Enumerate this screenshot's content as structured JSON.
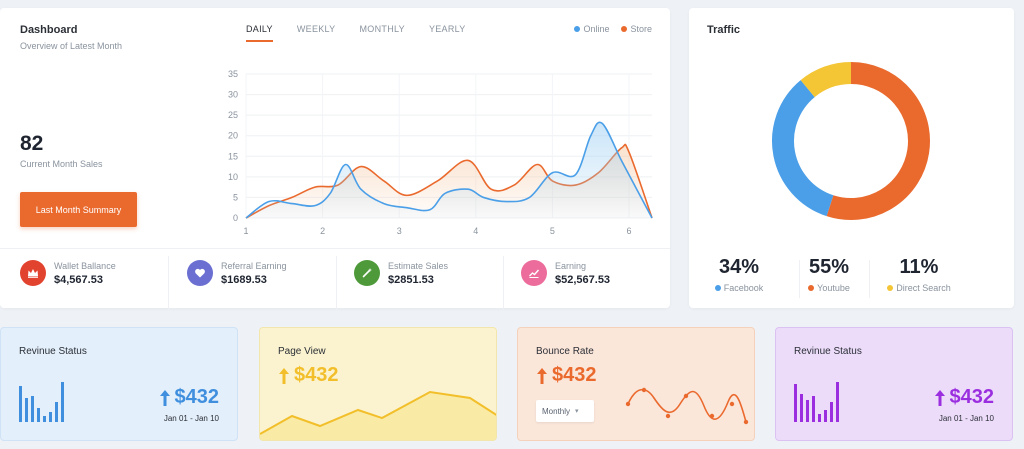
{
  "dashboard": {
    "title": "Dashboard",
    "subtitle": "Overview of Latest Month",
    "current_sales_value": "82",
    "current_sales_label": "Current Month Sales",
    "summary_button": "Last Month Summary",
    "tabs": [
      {
        "label": "DAILY",
        "active": true
      },
      {
        "label": "WEEKLY",
        "active": false
      },
      {
        "label": "MONTHLY",
        "active": false
      },
      {
        "label": "YEARLY",
        "active": false
      }
    ],
    "legend": [
      {
        "label": "Online",
        "color": "#4a9fe8"
      },
      {
        "label": "Store",
        "color": "#ea6a2e"
      }
    ],
    "stats": [
      {
        "label": "Wallet Ballance",
        "value": "$4,567.53",
        "color": "#e2432f",
        "icon": "crown-icon"
      },
      {
        "label": "Referral Earning",
        "value": "$1689.53",
        "color": "#6a6fd1",
        "icon": "heart-icon"
      },
      {
        "label": "Estimate Sales",
        "value": "$2851.53",
        "color": "#4e9a3a",
        "icon": "magic-wand-icon"
      },
      {
        "label": "Earning",
        "value": "$52,567.53",
        "color": "#ec6d9b",
        "icon": "trend-chart-icon"
      }
    ]
  },
  "chart_data": {
    "type": "area",
    "x": [
      1,
      2,
      3,
      4,
      5,
      6
    ],
    "ylim": [
      0,
      35
    ],
    "yticks": [
      0,
      5,
      10,
      15,
      20,
      25,
      30,
      35
    ],
    "xticks": [
      1,
      2,
      3,
      4,
      5,
      6
    ],
    "xlim": [
      1,
      6.3
    ],
    "grid": true,
    "series": [
      {
        "name": "Online",
        "color": "#4a9fe8",
        "x": [
          1,
          1.3,
          1.6,
          1.9,
          2.1,
          2.3,
          2.5,
          2.8,
          3.1,
          3.4,
          3.6,
          3.9,
          4.1,
          4.4,
          4.7,
          5.0,
          5.3,
          5.5,
          5.65,
          5.9,
          6.1,
          6.3
        ],
        "y": [
          0,
          4,
          3.5,
          3,
          6,
          13,
          7,
          3.5,
          2.5,
          2,
          6,
          7,
          5,
          4,
          5,
          11,
          10.5,
          20,
          23,
          14,
          7,
          0
        ]
      },
      {
        "name": "Store",
        "color": "#ea6a2e",
        "x": [
          1,
          1.3,
          1.6,
          1.9,
          2.2,
          2.5,
          2.8,
          3.1,
          3.5,
          3.9,
          4.2,
          4.5,
          4.8,
          5.0,
          5.3,
          5.6,
          5.9,
          6.0,
          6.3
        ],
        "y": [
          0,
          3,
          5,
          7.5,
          8,
          12.5,
          9,
          5.5,
          9,
          14,
          7,
          8,
          13,
          9,
          8,
          11,
          17,
          16,
          0
        ]
      }
    ]
  },
  "traffic": {
    "title": "Traffic",
    "donut": [
      {
        "label": "Facebook",
        "value": 34,
        "color": "#4a9fe8"
      },
      {
        "label": "Youtube",
        "value": 55,
        "color": "#ea6a2e"
      },
      {
        "label": "Direct Search",
        "value": 11,
        "color": "#f4c535"
      }
    ],
    "stats": [
      {
        "value": "34%",
        "label": "Facebook"
      },
      {
        "value": "55%",
        "label": "Youtube"
      },
      {
        "value": "11%",
        "label": "Direct Search"
      }
    ]
  },
  "bottom_cards": [
    {
      "title": "Revinue Status",
      "value": "$432",
      "date": "Jan 01 - Jan 10",
      "bg": "#e3effb",
      "accent": "#3f8fde"
    },
    {
      "title": "Page View",
      "value": "$432",
      "bg": "#fbf3cf",
      "accent": "#f2bf2b"
    },
    {
      "title": "Bounce Rate",
      "value": "$432",
      "select_value": "Monthly",
      "bg": "#fbe6da",
      "accent": "#ea6a2e"
    },
    {
      "title": "Revinue Status",
      "value": "$432",
      "date": "Jan 01 - Jan 10",
      "bg": "#ecdcfa",
      "accent": "#9b2fe0"
    }
  ]
}
